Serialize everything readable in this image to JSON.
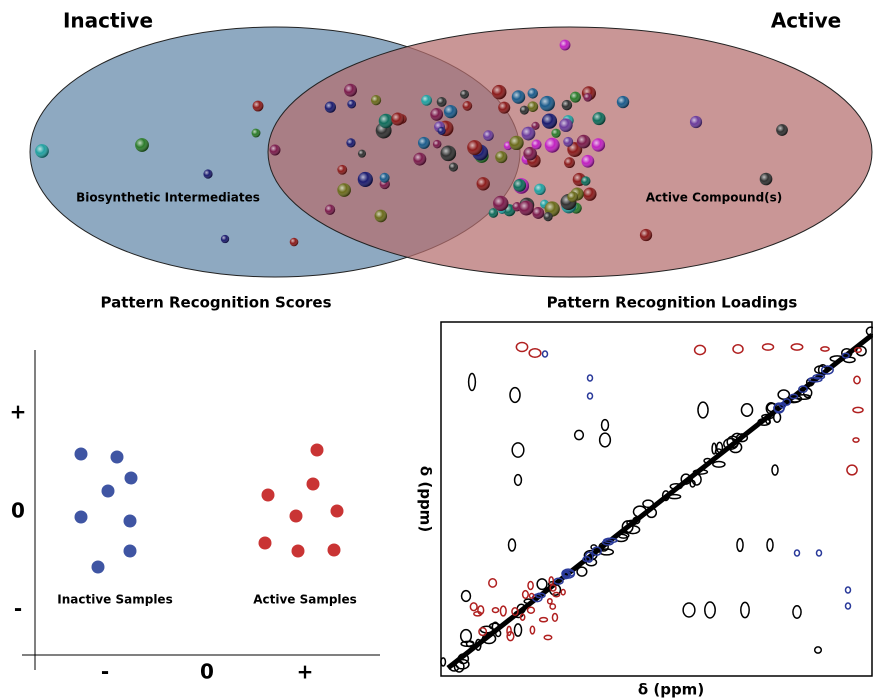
{
  "venn": {
    "left_title": "Inactive",
    "right_title": "Active",
    "left_label": "Biosynthetic Intermediates",
    "right_label": "Active Compound(s)"
  },
  "scores": {
    "title": "Pattern Recognition Scores",
    "y_labels": [
      "+",
      "0",
      "-"
    ],
    "x_labels": [
      "-",
      "0",
      "+"
    ],
    "groups": [
      "Inactive Samples",
      "Active Samples"
    ]
  },
  "loadings": {
    "title": "Pattern Recognition Loadings",
    "x_label": "δ (ppm)",
    "y_label": "δ (ppm)"
  }
}
